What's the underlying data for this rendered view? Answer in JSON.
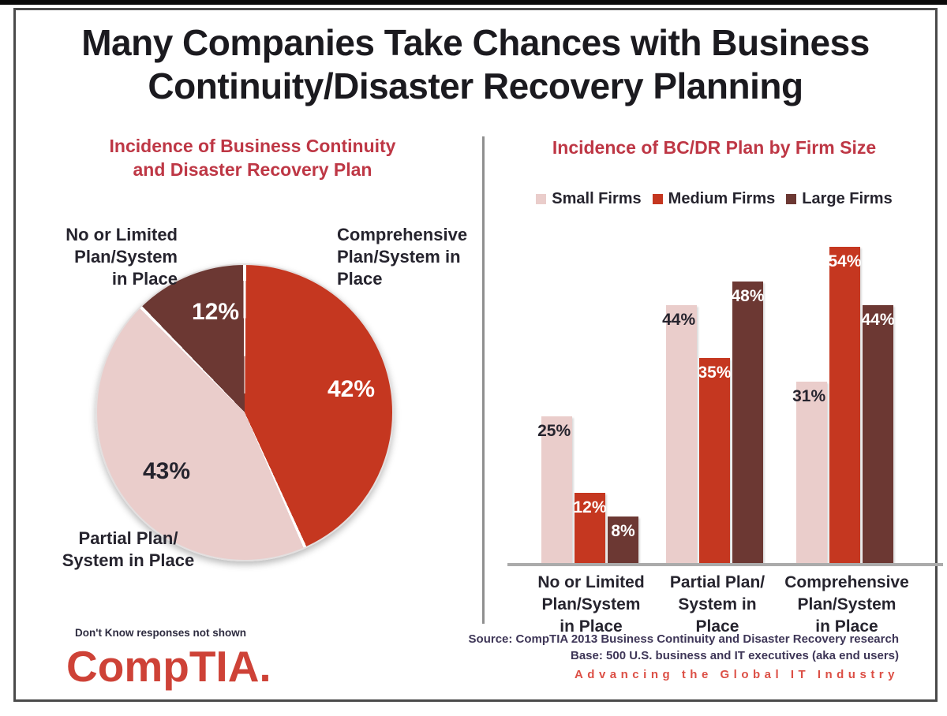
{
  "title": {
    "line1": "Many Companies Take Chances with Business",
    "line2": "Continuity/Disaster Recovery Planning"
  },
  "left_panel": {
    "title_line1": "Incidence of Business Continuity",
    "title_line2": "and Disaster Recovery Plan",
    "pie_outer_labels": {
      "no_limited": [
        "No or Limited",
        "Plan/System",
        "in Place"
      ],
      "comprehensive": [
        "Comprehensive",
        "Plan/System in",
        "Place"
      ],
      "partial": [
        "Partial Plan/",
        "System in Place"
      ]
    },
    "note": "Don't Know responses not shown",
    "logo_text": "CompTIA."
  },
  "right_panel": {
    "title": "Incidence of BC/DR Plan by Firm Size"
  },
  "footer": {
    "source_line1": "Source: CompTIA 2013 Business Continuity and Disaster Recovery research",
    "source_line2": "Base: 500 U.S. business and IT executives (aka end users)",
    "tagline": "Advancing the Global IT Industry"
  },
  "colors": {
    "red": "#C53720",
    "pink": "#EACDCB",
    "maroon": "#6C3833",
    "heading_red": "#BE3745",
    "logo_red": "#CE4237",
    "tagline_red": "#DC4F45",
    "dark_text": "#26242E",
    "axis_gray": "#ABABAB"
  },
  "chart_data": [
    {
      "type": "pie",
      "title": "Incidence of Business Continuity and Disaster Recovery Plan",
      "note": "Don't Know responses not shown (values sum to 97%)",
      "start_angle_deg": 0,
      "clockwise": true,
      "slices": [
        {
          "label": "Comprehensive Plan/System in Place",
          "value": 42,
          "color": "#C53720",
          "value_label_color": "#ffffff"
        },
        {
          "label": "Partial Plan/System in Place",
          "value": 43,
          "color": "#EACDCB",
          "value_label_color": "#26242E"
        },
        {
          "label": "No or Limited Plan/System in Place",
          "value": 12,
          "color": "#6C3833",
          "value_label_color": "#ffffff"
        }
      ]
    },
    {
      "type": "bar",
      "title": "Incidence of BC/DR Plan by Firm Size",
      "unit": "%",
      "ylim": [
        0,
        57
      ],
      "gridlines": false,
      "legend_position": "top",
      "categories": [
        "No or Limited Plan/System in Place",
        "Partial Plan/ System in Place",
        "Comprehensive Plan/System in Place"
      ],
      "category_lines": [
        [
          "No or Limited",
          "Plan/System",
          "in Place"
        ],
        [
          "Partial Plan/",
          "System in",
          "Place"
        ],
        [
          "Comprehensive",
          "Plan/System",
          "in Place"
        ]
      ],
      "series": [
        {
          "name": "Small Firms",
          "color": "#EACDCB",
          "label_color": "#26242E",
          "values": [
            25,
            44,
            31
          ]
        },
        {
          "name": "Medium Firms",
          "color": "#C53720",
          "label_color": "#ffffff",
          "values": [
            12,
            35,
            54
          ]
        },
        {
          "name": "Large Firms",
          "color": "#6C3833",
          "label_color": "#ffffff",
          "values": [
            8,
            48,
            44
          ]
        }
      ]
    }
  ]
}
